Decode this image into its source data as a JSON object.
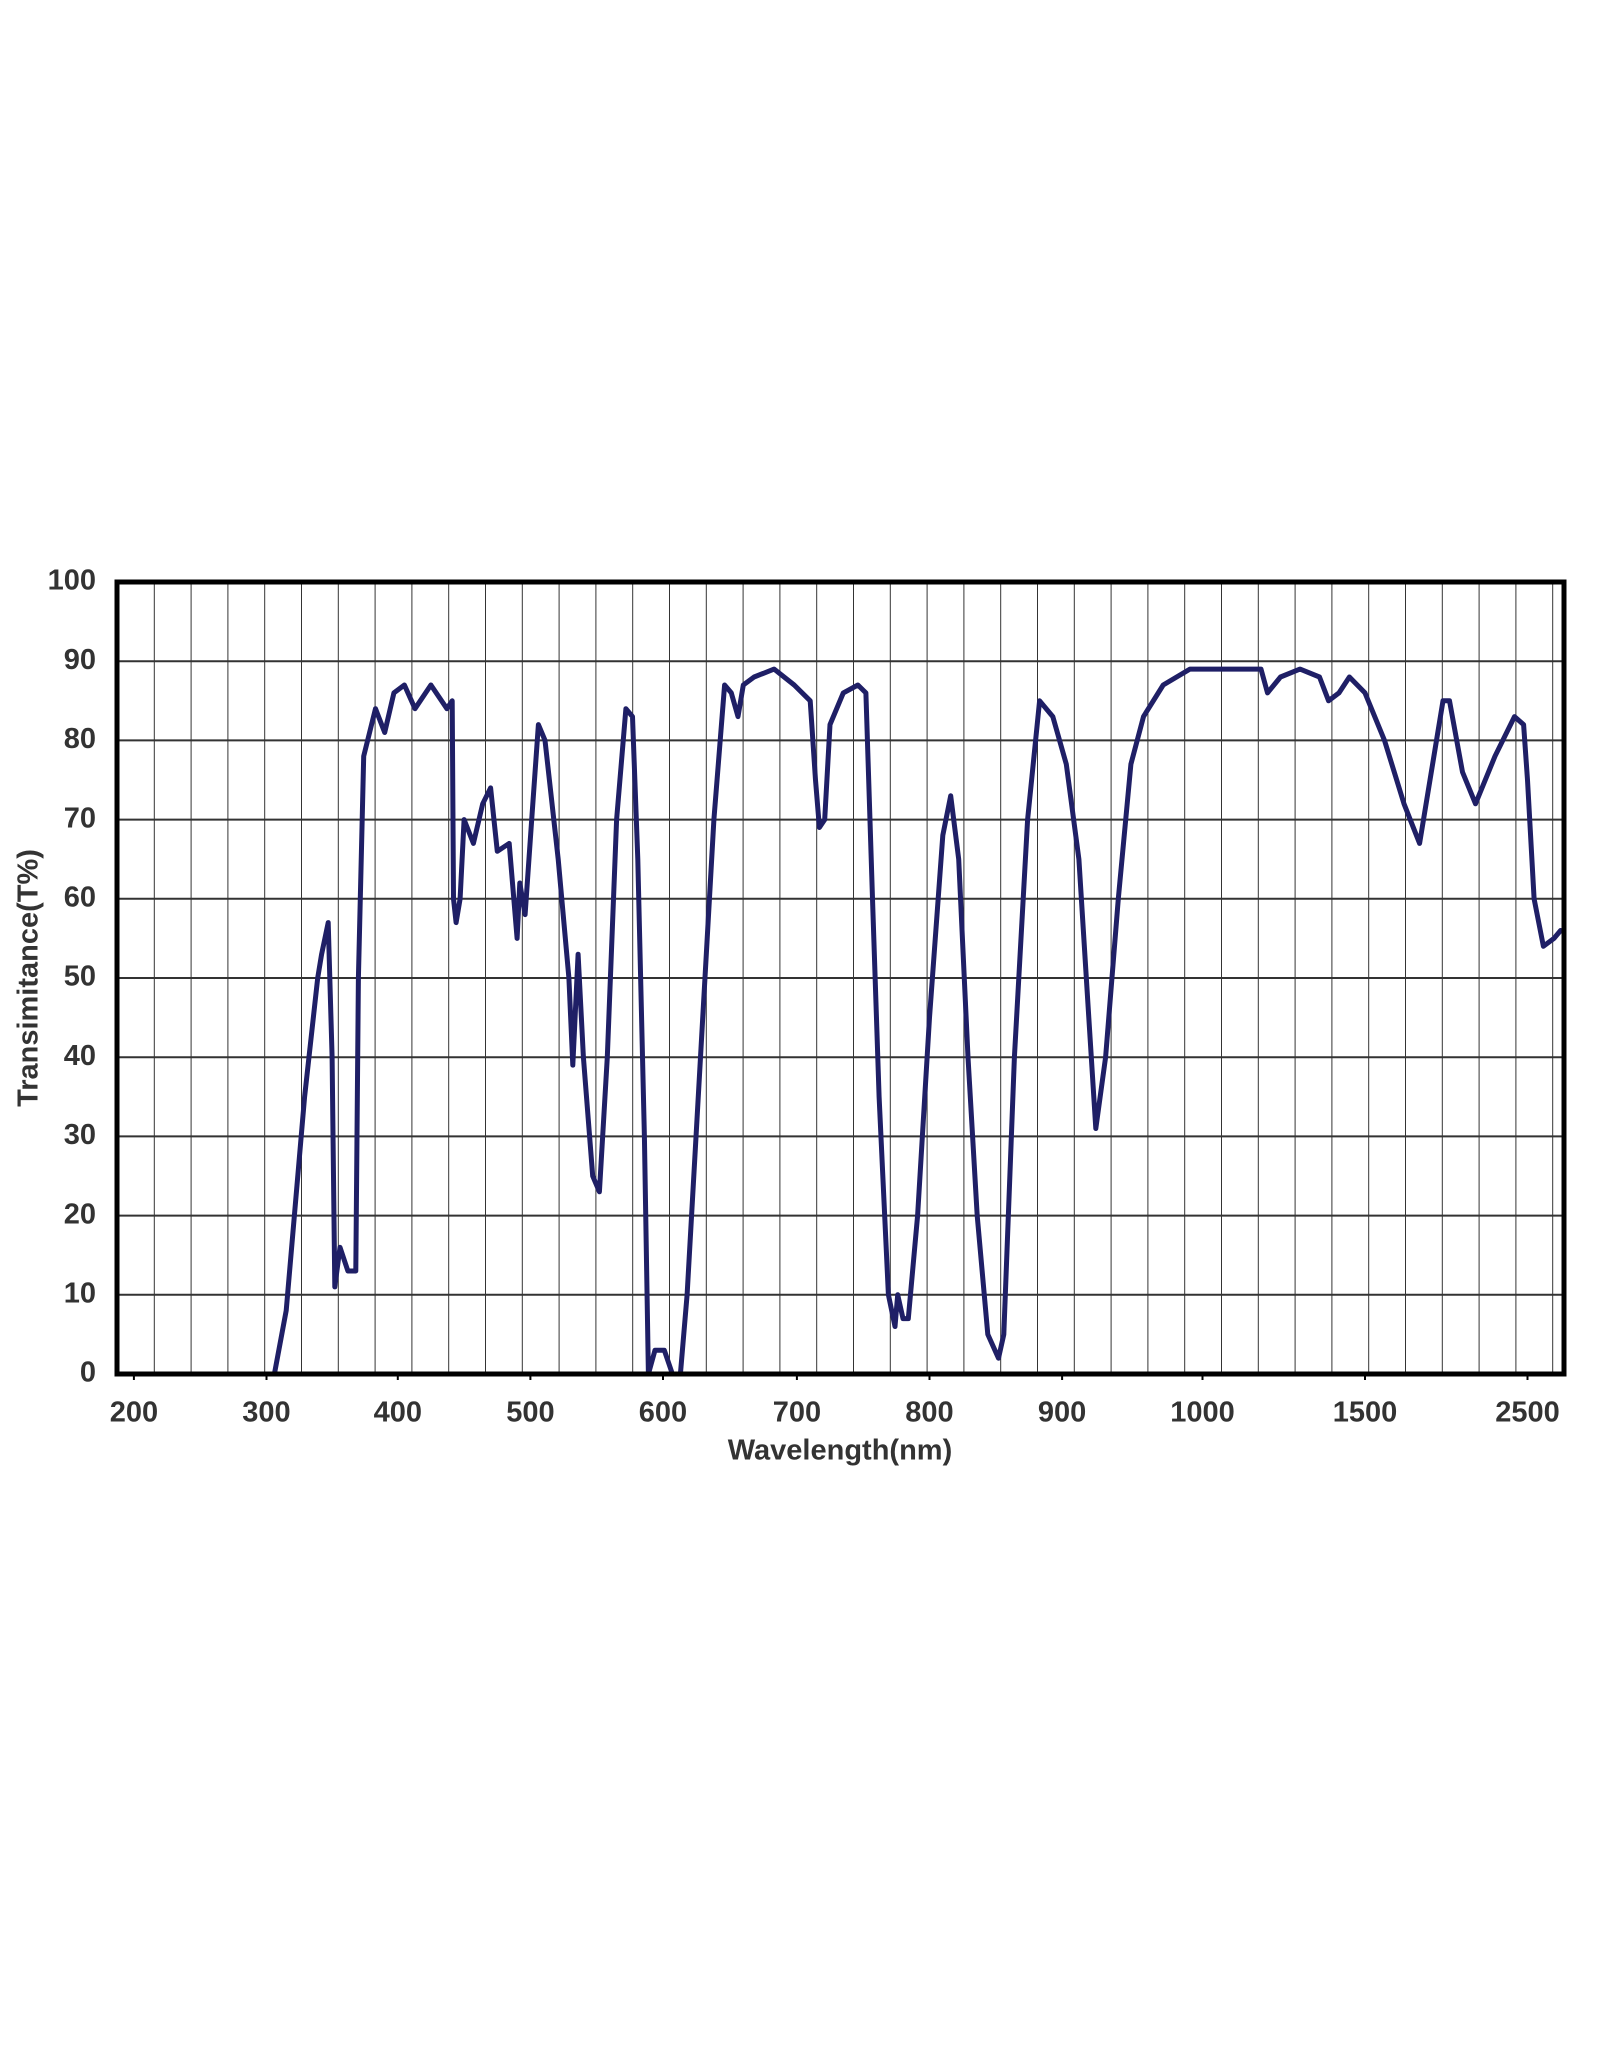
{
  "chart_data": {
    "type": "line",
    "x_label": "Wavelength(nm)",
    "y_label": "Transimitance(T%)",
    "xlim": [
      187,
      2720
    ],
    "xticks": [
      200,
      300,
      400,
      500,
      600,
      700,
      800,
      900,
      1000,
      1500,
      2500
    ],
    "ylim": [
      0,
      100
    ],
    "yticks": [
      0,
      10,
      20,
      30,
      40,
      50,
      60,
      70,
      80,
      90,
      100
    ],
    "grid": true,
    "color": "#1f1f66",
    "x": [
      306,
      315,
      329,
      339,
      342,
      347,
      350,
      352,
      356,
      362,
      368,
      370,
      374,
      383,
      390,
      397,
      405,
      413,
      425,
      437,
      441,
      442,
      444,
      447,
      450,
      457,
      464,
      470,
      475,
      484,
      490,
      492,
      496,
      501,
      506,
      511,
      521,
      529,
      532,
      536,
      540,
      547,
      552,
      558,
      565,
      572,
      577,
      581,
      586,
      589,
      594,
      601,
      607,
      613,
      618,
      628,
      638,
      646,
      651,
      656,
      660,
      668,
      683,
      698,
      710,
      714,
      717,
      721,
      725,
      735,
      746,
      752,
      757,
      762,
      769,
      774,
      776,
      780,
      784,
      791,
      800,
      810,
      816,
      822,
      829,
      836,
      844,
      852,
      856,
      864,
      874,
      883,
      893,
      903,
      912,
      919,
      924,
      931,
      940,
      949,
      958,
      972,
      991,
      1000,
      1140,
      1180,
      1200,
      1240,
      1300,
      1360,
      1388,
      1420,
      1452,
      1500,
      1620,
      1740,
      1836,
      1900,
      1980,
      2020,
      2100,
      2180,
      2300,
      2420,
      2476,
      2500,
      2540,
      2596,
      2660,
      2700
    ],
    "values": [
      0,
      8,
      35,
      50,
      53,
      57,
      40,
      11,
      16,
      13,
      13,
      50,
      78,
      84,
      81,
      86,
      87,
      84,
      87,
      84,
      85,
      60,
      57,
      60,
      70,
      67,
      72,
      74,
      66,
      67,
      55,
      62,
      58,
      70,
      82,
      80,
      65,
      50,
      39,
      53,
      40,
      25,
      23,
      40,
      70,
      84,
      83,
      65,
      30,
      0,
      3,
      3,
      0,
      0,
      10,
      40,
      70,
      87,
      86,
      83,
      87,
      88,
      89,
      87,
      85,
      75,
      69,
      70,
      82,
      86,
      87,
      86,
      60,
      35,
      10,
      6,
      10,
      7,
      7,
      20,
      45,
      68,
      73,
      65,
      40,
      20,
      5,
      2,
      5,
      40,
      70,
      85,
      83,
      77,
      65,
      45,
      31,
      40,
      60,
      77,
      83,
      87,
      89,
      89,
      89,
      89,
      86,
      88,
      89,
      88,
      85,
      86,
      88,
      86,
      80,
      72,
      67,
      75,
      85,
      85,
      76,
      72,
      78,
      83,
      82,
      75,
      60,
      54,
      55,
      56
    ]
  }
}
